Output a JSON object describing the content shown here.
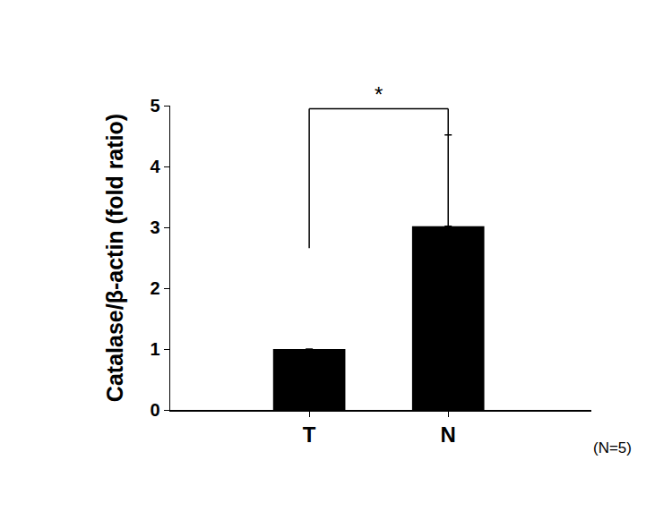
{
  "chart_data": {
    "type": "bar",
    "categories": [
      "T",
      "N"
    ],
    "values": [
      1,
      3.02
    ],
    "errors": [
      null,
      1.5
    ],
    "color": "#000000",
    "y_label": "Catalase/β-actin (fold ratio)",
    "ylim": [
      0,
      5
    ],
    "yticks": [
      0,
      1,
      2,
      3,
      4,
      5
    ],
    "grid": false,
    "annotations": [
      "*",
      "(N=5)"
    ]
  }
}
